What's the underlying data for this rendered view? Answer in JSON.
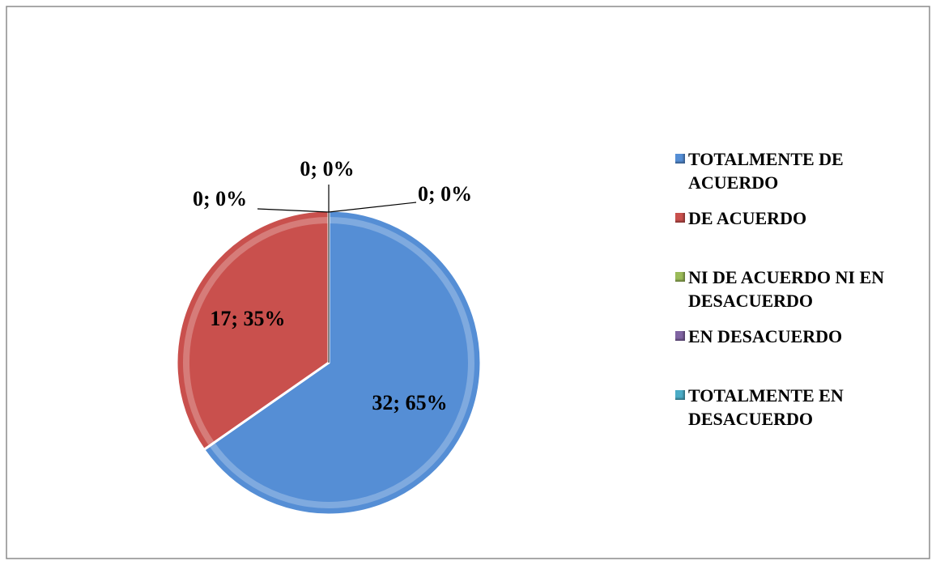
{
  "chart_data": {
    "type": "pie",
    "categories": [
      "TOTALMENTE DE ACUERDO",
      "DE ACUERDO",
      "NI DE ACUERDO NI EN DESACUERDO",
      "EN DESACUERDO",
      "TOTALMENTE EN DESACUERDO"
    ],
    "values": [
      32,
      17,
      0,
      0,
      0
    ],
    "value_labels": [
      "32; 65%",
      "17; 35%",
      "0; 0%",
      "0; 0%",
      "0; 0%"
    ],
    "colors": [
      "#558ed5",
      "#c9504d",
      "#9bbb59",
      "#8064a2",
      "#4bacc6"
    ],
    "legend": "right"
  }
}
